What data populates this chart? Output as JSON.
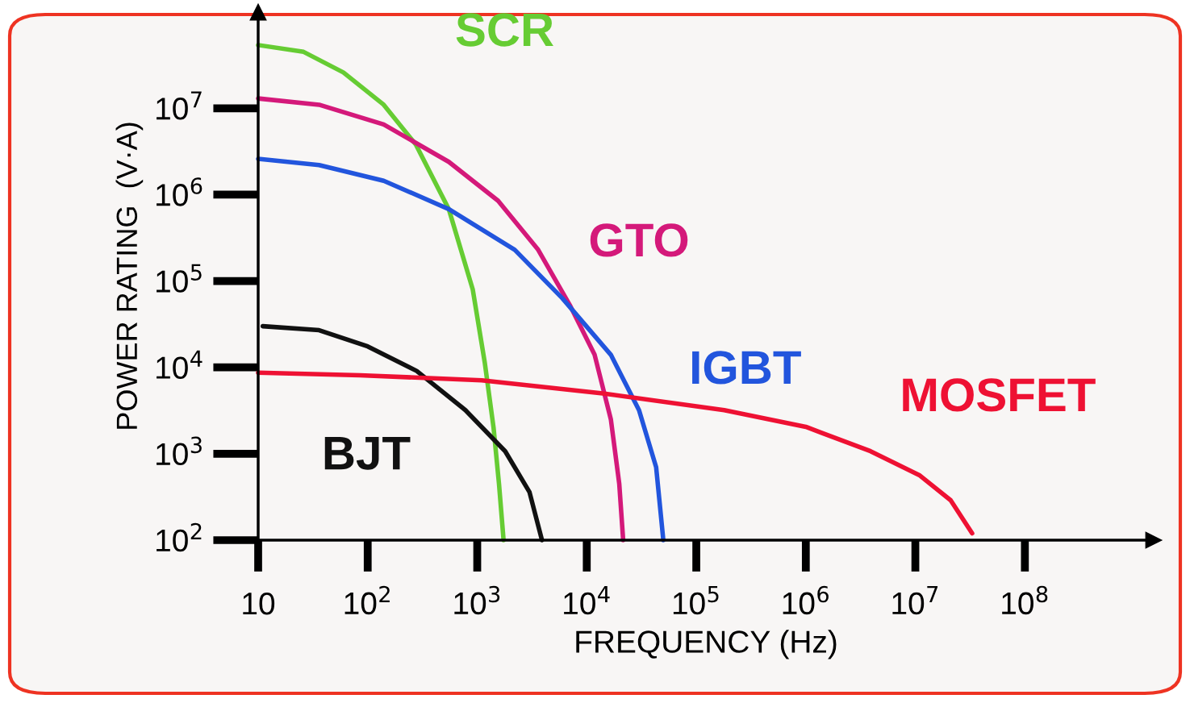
{
  "chart_data": {
    "type": "line",
    "xlabel": "FREQUENCY (Hz)",
    "ylabel": "POWER RATING  (V·A)",
    "log": "xy",
    "xlim": [
      10,
      1500000000
    ],
    "ylim": [
      100,
      130000000
    ],
    "xticks": [
      10,
      {
        "value": 100,
        "label": "10$^{2}$"
      },
      {
        "value": 1000,
        "label": "10$^{3}$"
      },
      {
        "value": 10000,
        "label": "10$^{4}$"
      },
      {
        "value": 100000,
        "label": "10$^{5}$"
      },
      {
        "value": 1000000,
        "label": "10$^{6}$"
      },
      {
        "value": 10000000,
        "label": "10$^{7}$"
      },
      {
        "value": 100000000,
        "label": "10$^{8}$"
      }
    ],
    "yticks": [
      {
        "value": 100,
        "label": "10$^{2}$"
      },
      {
        "value": 1000,
        "label": "10$^{3}$"
      },
      {
        "value": 10000,
        "label": "10$^{4}$"
      },
      {
        "value": 100000,
        "label": "10$^{5}$"
      },
      {
        "value": 1000000,
        "label": "10$^{6}$"
      },
      {
        "value": 10000000,
        "label": "10$^{7}$"
      }
    ],
    "series": [
      {
        "name": "SCR",
        "color": "#66cc33",
        "x": [
          10,
          26,
          60,
          140,
          275,
          550,
          910,
          1170,
          1410,
          1580,
          1740
        ],
        "values": [
          54000000,
          45000000,
          26000000,
          11000000,
          3800000,
          680000,
          80000,
          11500,
          2000,
          450,
          100
        ]
      },
      {
        "name": "GTO",
        "color": "#d4197a",
        "x": [
          10,
          36,
          140,
          550,
          1550,
          3600,
          7100,
          11800,
          16600,
          19800,
          21500
        ],
        "values": [
          13000000,
          11000000,
          6500000,
          2400000,
          850000,
          230000,
          51000,
          14000,
          2500,
          450,
          100
        ]
      },
      {
        "name": "IGBT",
        "color": "#2255dd",
        "x": [
          10,
          36,
          140,
          550,
          2200,
          6000,
          16600,
          30000,
          43000,
          50000
        ],
        "values": [
          2600000,
          2200000,
          1450000,
          680000,
          230000,
          63000,
          14000,
          3200,
          700,
          100
        ]
      },
      {
        "name": "BJT",
        "color": "#111111",
        "x": [
          11,
          36,
          100,
          280,
          780,
          1800,
          3000,
          3900
        ],
        "values": [
          30000,
          27000,
          17500,
          9100,
          3200,
          1070,
          360,
          100
        ]
      },
      {
        "name": "MOSFET",
        "color": "#ee1133",
        "x": [
          10,
          85,
          1100,
          14000,
          180000,
          1000000,
          3900000,
          11000000,
          21000000,
          33000000
        ],
        "values": [
          8700,
          8100,
          7100,
          5000,
          3200,
          2050,
          1070,
          560,
          290,
          120
        ]
      }
    ]
  }
}
